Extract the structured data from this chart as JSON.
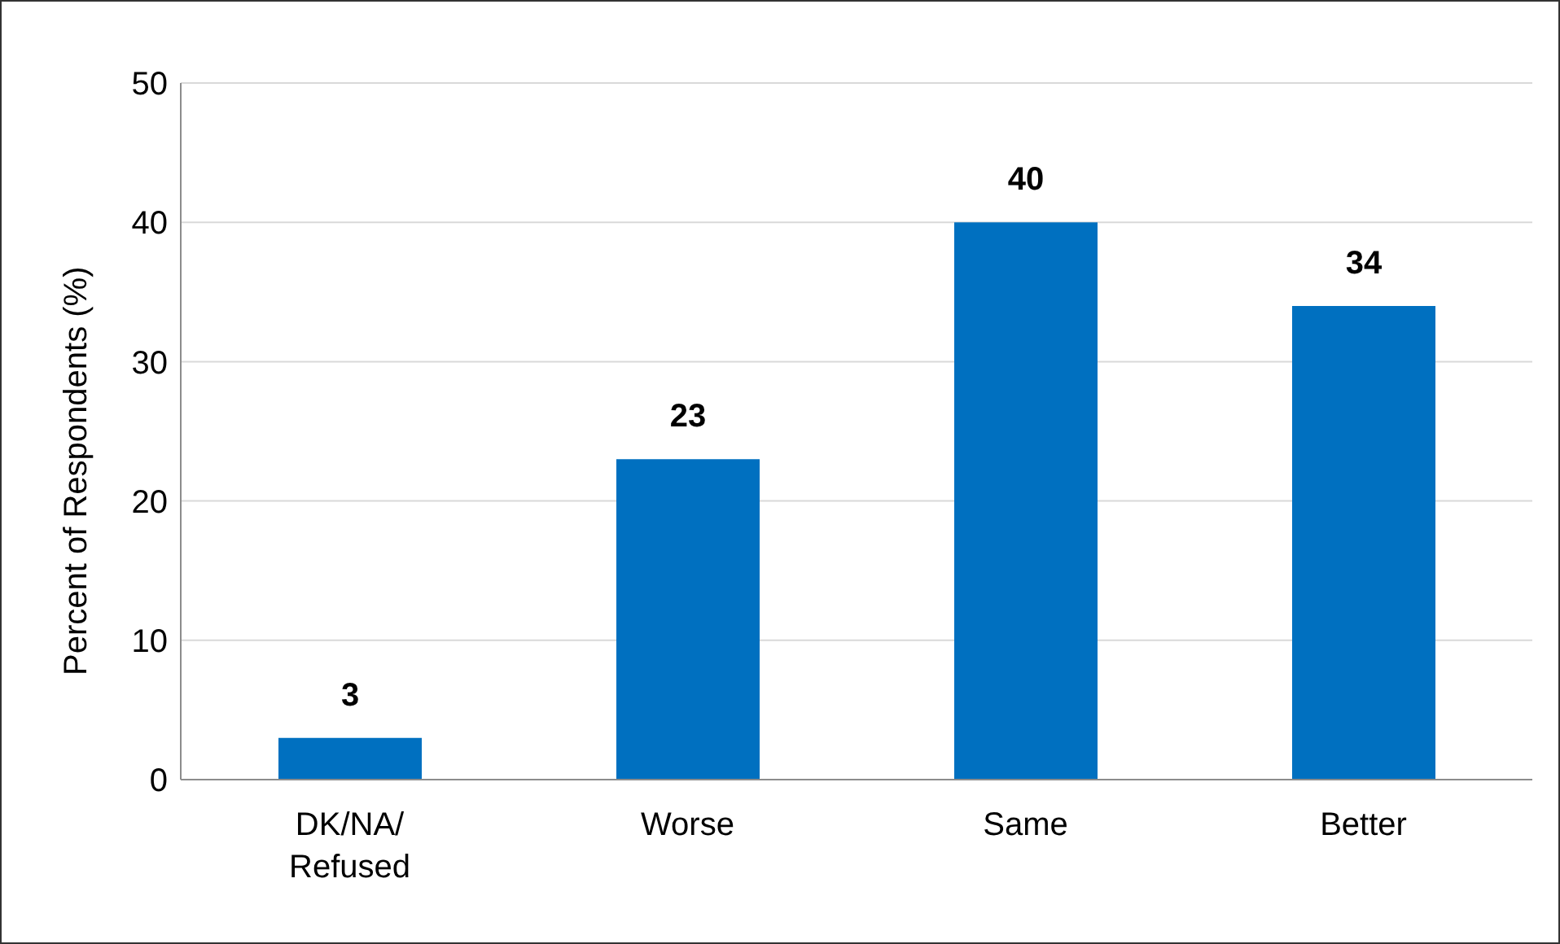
{
  "chart_data": {
    "type": "bar",
    "ylabel": "Percent of Respondents (%)",
    "categories": [
      "DK/NA/Refused",
      "Worse",
      "Same",
      "Better"
    ],
    "values": [
      3,
      23,
      40,
      34
    ],
    "color": "#0070c0",
    "ylim": [
      0,
      50
    ],
    "yticks": [
      0,
      10,
      20,
      30,
      40,
      50
    ],
    "grid": "y",
    "data_labels": true
  }
}
